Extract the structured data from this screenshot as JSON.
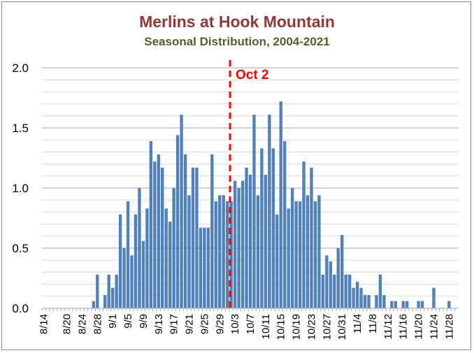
{
  "chart_data": {
    "type": "bar",
    "title": "Merlins at Hook Mountain",
    "subtitle": "Seasonal Distribution, 2004-2021",
    "xlabel": "",
    "ylabel": "",
    "ylim": [
      0,
      2.0
    ],
    "yticks": [
      "0.0",
      "0.5",
      "1.0",
      "1.5",
      "2.0"
    ],
    "grid": true,
    "bar_color": "#4f81bd",
    "annotation": {
      "label": "Oct 2",
      "color": "#ff0000",
      "date": "10/2"
    },
    "tick_labels": [
      "8/14",
      "8/20",
      "8/24",
      "8/28",
      "9/1",
      "9/5",
      "9/9",
      "9/13",
      "9/17",
      "9/21",
      "9/25",
      "9/29",
      "10/3",
      "10/7",
      "10/11",
      "10/15",
      "10/19",
      "10/23",
      "10/27",
      "10/31",
      "11/4",
      "11/8",
      "11/12",
      "11/16",
      "11/20",
      "11/24",
      "11/28"
    ],
    "categories": [
      "8/14",
      "8/15",
      "8/16",
      "8/17",
      "8/18",
      "8/19",
      "8/20",
      "8/21",
      "8/22",
      "8/23",
      "8/24",
      "8/25",
      "8/26",
      "8/27",
      "8/28",
      "8/29",
      "8/30",
      "8/31",
      "9/1",
      "9/2",
      "9/3",
      "9/4",
      "9/5",
      "9/6",
      "9/7",
      "9/8",
      "9/9",
      "9/10",
      "9/11",
      "9/12",
      "9/13",
      "9/14",
      "9/15",
      "9/16",
      "9/17",
      "9/18",
      "9/19",
      "9/20",
      "9/21",
      "9/22",
      "9/23",
      "9/24",
      "9/25",
      "9/26",
      "9/27",
      "9/28",
      "9/29",
      "9/30",
      "10/1",
      "10/2",
      "10/3",
      "10/4",
      "10/5",
      "10/6",
      "10/7",
      "10/8",
      "10/9",
      "10/10",
      "10/11",
      "10/12",
      "10/13",
      "10/14",
      "10/15",
      "10/16",
      "10/17",
      "10/18",
      "10/19",
      "10/20",
      "10/21",
      "10/22",
      "10/23",
      "10/24",
      "10/25",
      "10/26",
      "10/27",
      "10/28",
      "10/29",
      "10/30",
      "10/31",
      "11/1",
      "11/2",
      "11/3",
      "11/4",
      "11/5",
      "11/6",
      "11/7",
      "11/8",
      "11/9",
      "11/10",
      "11/11",
      "11/12",
      "11/13",
      "11/14",
      "11/15",
      "11/16",
      "11/17",
      "11/18",
      "11/19",
      "11/20",
      "11/21",
      "11/22",
      "11/23",
      "11/24",
      "11/25",
      "11/26",
      "11/27",
      "11/28",
      "11/29",
      "11/30"
    ],
    "values": [
      0,
      0,
      0,
      0,
      0,
      0,
      0,
      0,
      0,
      0,
      0,
      0,
      0,
      0.06,
      0.28,
      0,
      0.11,
      0.28,
      0.17,
      0.28,
      0.78,
      0.5,
      0.89,
      0.44,
      0.78,
      1.0,
      0.56,
      0.83,
      1.39,
      1.22,
      1.28,
      1.17,
      0.83,
      0.72,
      1.0,
      1.44,
      1.61,
      1.28,
      0.94,
      1.17,
      1.17,
      0.67,
      0.67,
      0.67,
      1.28,
      0.89,
      0.94,
      0.94,
      0.89,
      0.89,
      1.06,
      1.0,
      1.06,
      1.17,
      1.11,
      1.61,
      0.94,
      1.33,
      1.11,
      1.61,
      1.33,
      0.78,
      1.72,
      1.39,
      0.83,
      1.0,
      0.89,
      0.89,
      1.22,
      0.94,
      1.17,
      0.89,
      0.94,
      0.28,
      0.44,
      0.39,
      0.28,
      0.5,
      0.61,
      0.28,
      0.28,
      0.17,
      0.22,
      0.17,
      0.11,
      0.11,
      0,
      0.11,
      0.28,
      0.11,
      0,
      0.06,
      0.06,
      0,
      0.06,
      0.06,
      0,
      0,
      0.06,
      0.06,
      0,
      0,
      0.17,
      0,
      0,
      0,
      0.06,
      0,
      0
    ]
  }
}
